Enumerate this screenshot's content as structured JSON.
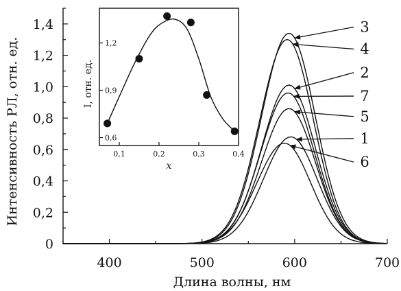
{
  "chart_data": [
    {
      "type": "line",
      "xlabel": "Длина волны, нм",
      "ylabel": "Интенсивность РЛ, отн. ед.",
      "xlim": [
        350,
        700
      ],
      "ylim": [
        0,
        1.5
      ],
      "xticks": [
        400,
        500,
        600,
        700
      ],
      "xtick_labels": [
        "400",
        "500",
        "600",
        "700"
      ],
      "yticks": [
        0,
        0.2,
        0.4,
        0.6,
        0.8,
        1.0,
        1.2,
        1.4
      ],
      "ytick_labels": [
        "0",
        "0,2",
        "0,4",
        "0,6",
        "0,8",
        "1,0",
        "1,2",
        "1,4"
      ],
      "grid": false,
      "series": [
        {
          "name": "3",
          "peak_x": 594,
          "peak_y": 1.34,
          "label_y": 1.38
        },
        {
          "name": "4",
          "peak_x": 592,
          "peak_y": 1.3,
          "label_y": 1.24
        },
        {
          "name": "2",
          "peak_x": 594,
          "peak_y": 1.01,
          "label_y": 1.09
        },
        {
          "name": "7",
          "peak_x": 593,
          "peak_y": 0.96,
          "label_y": 0.94
        },
        {
          "name": "5",
          "peak_x": 594,
          "peak_y": 0.86,
          "label_y": 0.81
        },
        {
          "name": "1",
          "peak_x": 596,
          "peak_y": 0.68,
          "label_y": 0.67
        },
        {
          "name": "6",
          "peak_x": 589,
          "peak_y": 0.64,
          "label_y": 0.52
        }
      ]
    },
    {
      "type": "scatter",
      "inset": true,
      "xlabel": "x",
      "ylabel": "I, отн. ед.",
      "xlim": [
        0.05,
        0.4
      ],
      "ylim": [
        0.55,
        1.42
      ],
      "xticks": [
        0.1,
        0.2,
        0.3,
        0.4
      ],
      "xtick_labels": [
        "0,1",
        "0,2",
        "0,3",
        "0,4"
      ],
      "yticks": [
        0.6,
        0.9,
        1.2
      ],
      "ytick_labels": [
        "0,6",
        "0,9",
        "1,2"
      ],
      "points": {
        "x": [
          0.07,
          0.15,
          0.22,
          0.28,
          0.32,
          0.39
        ],
        "y": [
          0.69,
          1.1,
          1.37,
          1.33,
          0.87,
          0.64
        ]
      },
      "fit_curve": {
        "x": [
          0.07,
          0.1,
          0.14,
          0.18,
          0.21,
          0.24,
          0.27,
          0.3,
          0.33,
          0.36,
          0.39
        ],
        "y": [
          0.69,
          0.86,
          1.08,
          1.26,
          1.33,
          1.35,
          1.29,
          1.1,
          0.86,
          0.72,
          0.64
        ]
      }
    }
  ]
}
